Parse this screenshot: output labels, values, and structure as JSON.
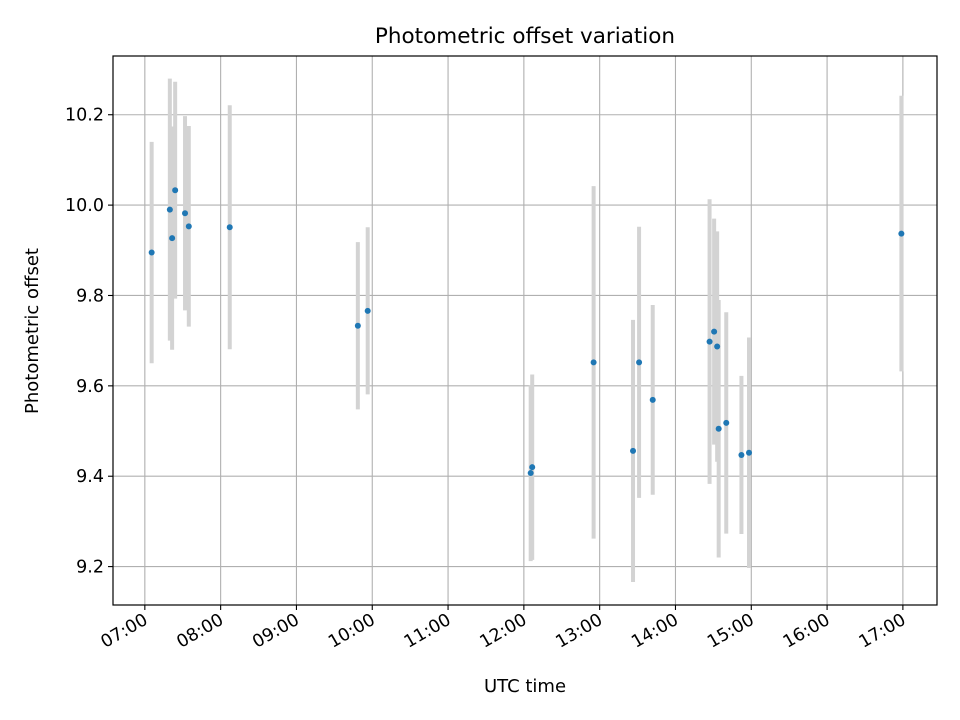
{
  "chart_data": {
    "type": "scatter",
    "title": "Photometric offset variation",
    "xlabel": "UTC time",
    "ylabel": "Photometric offset",
    "x_unit": "hours UTC",
    "xlim": [
      6.58,
      17.45
    ],
    "ylim": [
      9.115,
      10.33
    ],
    "x_ticks": [
      {
        "value": 7,
        "label": "07:00"
      },
      {
        "value": 8,
        "label": "08:00"
      },
      {
        "value": 9,
        "label": "09:00"
      },
      {
        "value": 10,
        "label": "10:00"
      },
      {
        "value": 11,
        "label": "11:00"
      },
      {
        "value": 12,
        "label": "12:00"
      },
      {
        "value": 13,
        "label": "13:00"
      },
      {
        "value": 14,
        "label": "14:00"
      },
      {
        "value": 15,
        "label": "15:00"
      },
      {
        "value": 16,
        "label": "16:00"
      },
      {
        "value": 17,
        "label": "17:00"
      }
    ],
    "y_ticks": [
      {
        "value": 9.2,
        "label": "9.2"
      },
      {
        "value": 9.4,
        "label": "9.4"
      },
      {
        "value": 9.6,
        "label": "9.6"
      },
      {
        "value": 9.8,
        "label": "9.8"
      },
      {
        "value": 10.0,
        "label": "10.0"
      },
      {
        "value": 10.2,
        "label": "10.2"
      }
    ],
    "grid": true,
    "colors": {
      "point": "#1f77b4",
      "errorbar": "#d3d3d3",
      "grid": "#b0b0b0"
    },
    "points": [
      {
        "x": 7.09,
        "y": 9.895,
        "err": 0.245
      },
      {
        "x": 7.33,
        "y": 9.99,
        "err": 0.29
      },
      {
        "x": 7.36,
        "y": 9.927,
        "err": 0.247
      },
      {
        "x": 7.4,
        "y": 10.033,
        "err": 0.24
      },
      {
        "x": 7.53,
        "y": 9.982,
        "err": 0.215
      },
      {
        "x": 7.58,
        "y": 9.953,
        "err": 0.222
      },
      {
        "x": 8.12,
        "y": 9.951,
        "err": 0.27
      },
      {
        "x": 9.81,
        "y": 9.733,
        "err": 0.185
      },
      {
        "x": 9.94,
        "y": 9.766,
        "err": 0.185
      },
      {
        "x": 12.09,
        "y": 9.407,
        "err": 0.195
      },
      {
        "x": 12.11,
        "y": 9.42,
        "err": 0.205
      },
      {
        "x": 12.92,
        "y": 9.652,
        "err": 0.39
      },
      {
        "x": 13.44,
        "y": 9.456,
        "err": 0.29
      },
      {
        "x": 13.52,
        "y": 9.652,
        "err": 0.3
      },
      {
        "x": 13.7,
        "y": 9.569,
        "err": 0.21
      },
      {
        "x": 14.45,
        "y": 9.698,
        "err": 0.315
      },
      {
        "x": 14.51,
        "y": 9.72,
        "err": 0.25
      },
      {
        "x": 14.55,
        "y": 9.687,
        "err": 0.255
      },
      {
        "x": 14.57,
        "y": 9.505,
        "err": 0.285
      },
      {
        "x": 14.67,
        "y": 9.518,
        "err": 0.245
      },
      {
        "x": 14.87,
        "y": 9.447,
        "err": 0.175
      },
      {
        "x": 14.97,
        "y": 9.452,
        "err": 0.255
      },
      {
        "x": 16.98,
        "y": 9.937,
        "err": 0.305
      }
    ]
  }
}
